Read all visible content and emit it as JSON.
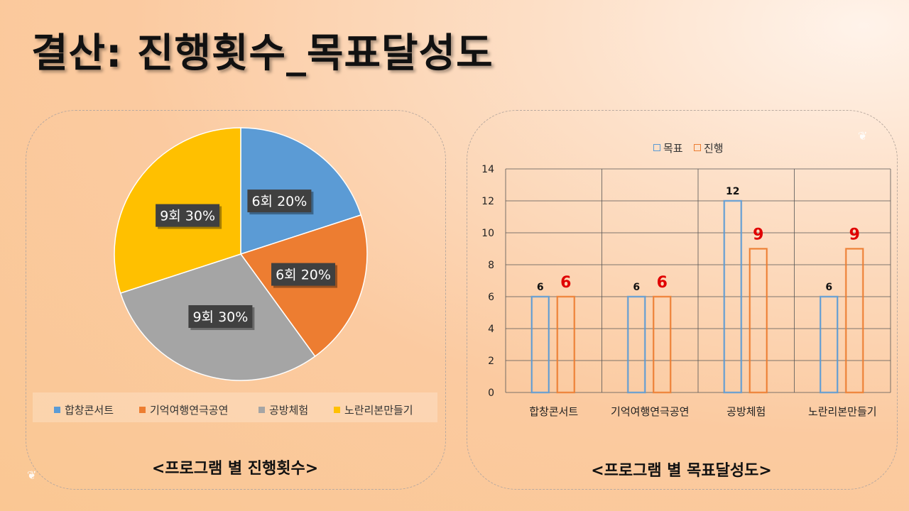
{
  "title": "결산: 진행횟수_목표달성도",
  "colors": {
    "blue": "#5b9bd5",
    "orange": "#ed7d31",
    "gray": "#a5a5a5",
    "yellow": "#ffc000",
    "red_label": "#e00000"
  },
  "left_panel": {
    "caption": "<프로그램 별 진행횟수>"
  },
  "right_panel": {
    "caption": "<프로그램 별 목표달성도>"
  },
  "chart_data": [
    {
      "type": "pie",
      "categories": [
        "합창콘서트",
        "기억여행연극공연",
        "공방체험",
        "노란리본만들기"
      ],
      "values": [
        6,
        6,
        9,
        9
      ],
      "percent": [
        20,
        20,
        30,
        30
      ],
      "data_labels": [
        "6회 20%",
        "6회 20%",
        "9회 30%",
        "9회 30%"
      ],
      "legend_position": "bottom"
    },
    {
      "type": "bar",
      "categories": [
        "합창콘서트",
        "기억여행연극공연",
        "공방체험",
        "노란리본만들기"
      ],
      "series": [
        {
          "name": "목표",
          "values": [
            6,
            6,
            12,
            6
          ],
          "labels": [
            "6",
            "6",
            "12",
            "6"
          ]
        },
        {
          "name": "진행",
          "values": [
            6,
            6,
            9,
            9
          ],
          "labels": [
            "6",
            "6",
            "9",
            "9"
          ]
        }
      ],
      "ylim": [
        0,
        14
      ],
      "y_ticks": [
        "0",
        "2",
        "4",
        "6",
        "8",
        "10",
        "12",
        "14"
      ],
      "grid": true,
      "legend_position": "top"
    }
  ]
}
